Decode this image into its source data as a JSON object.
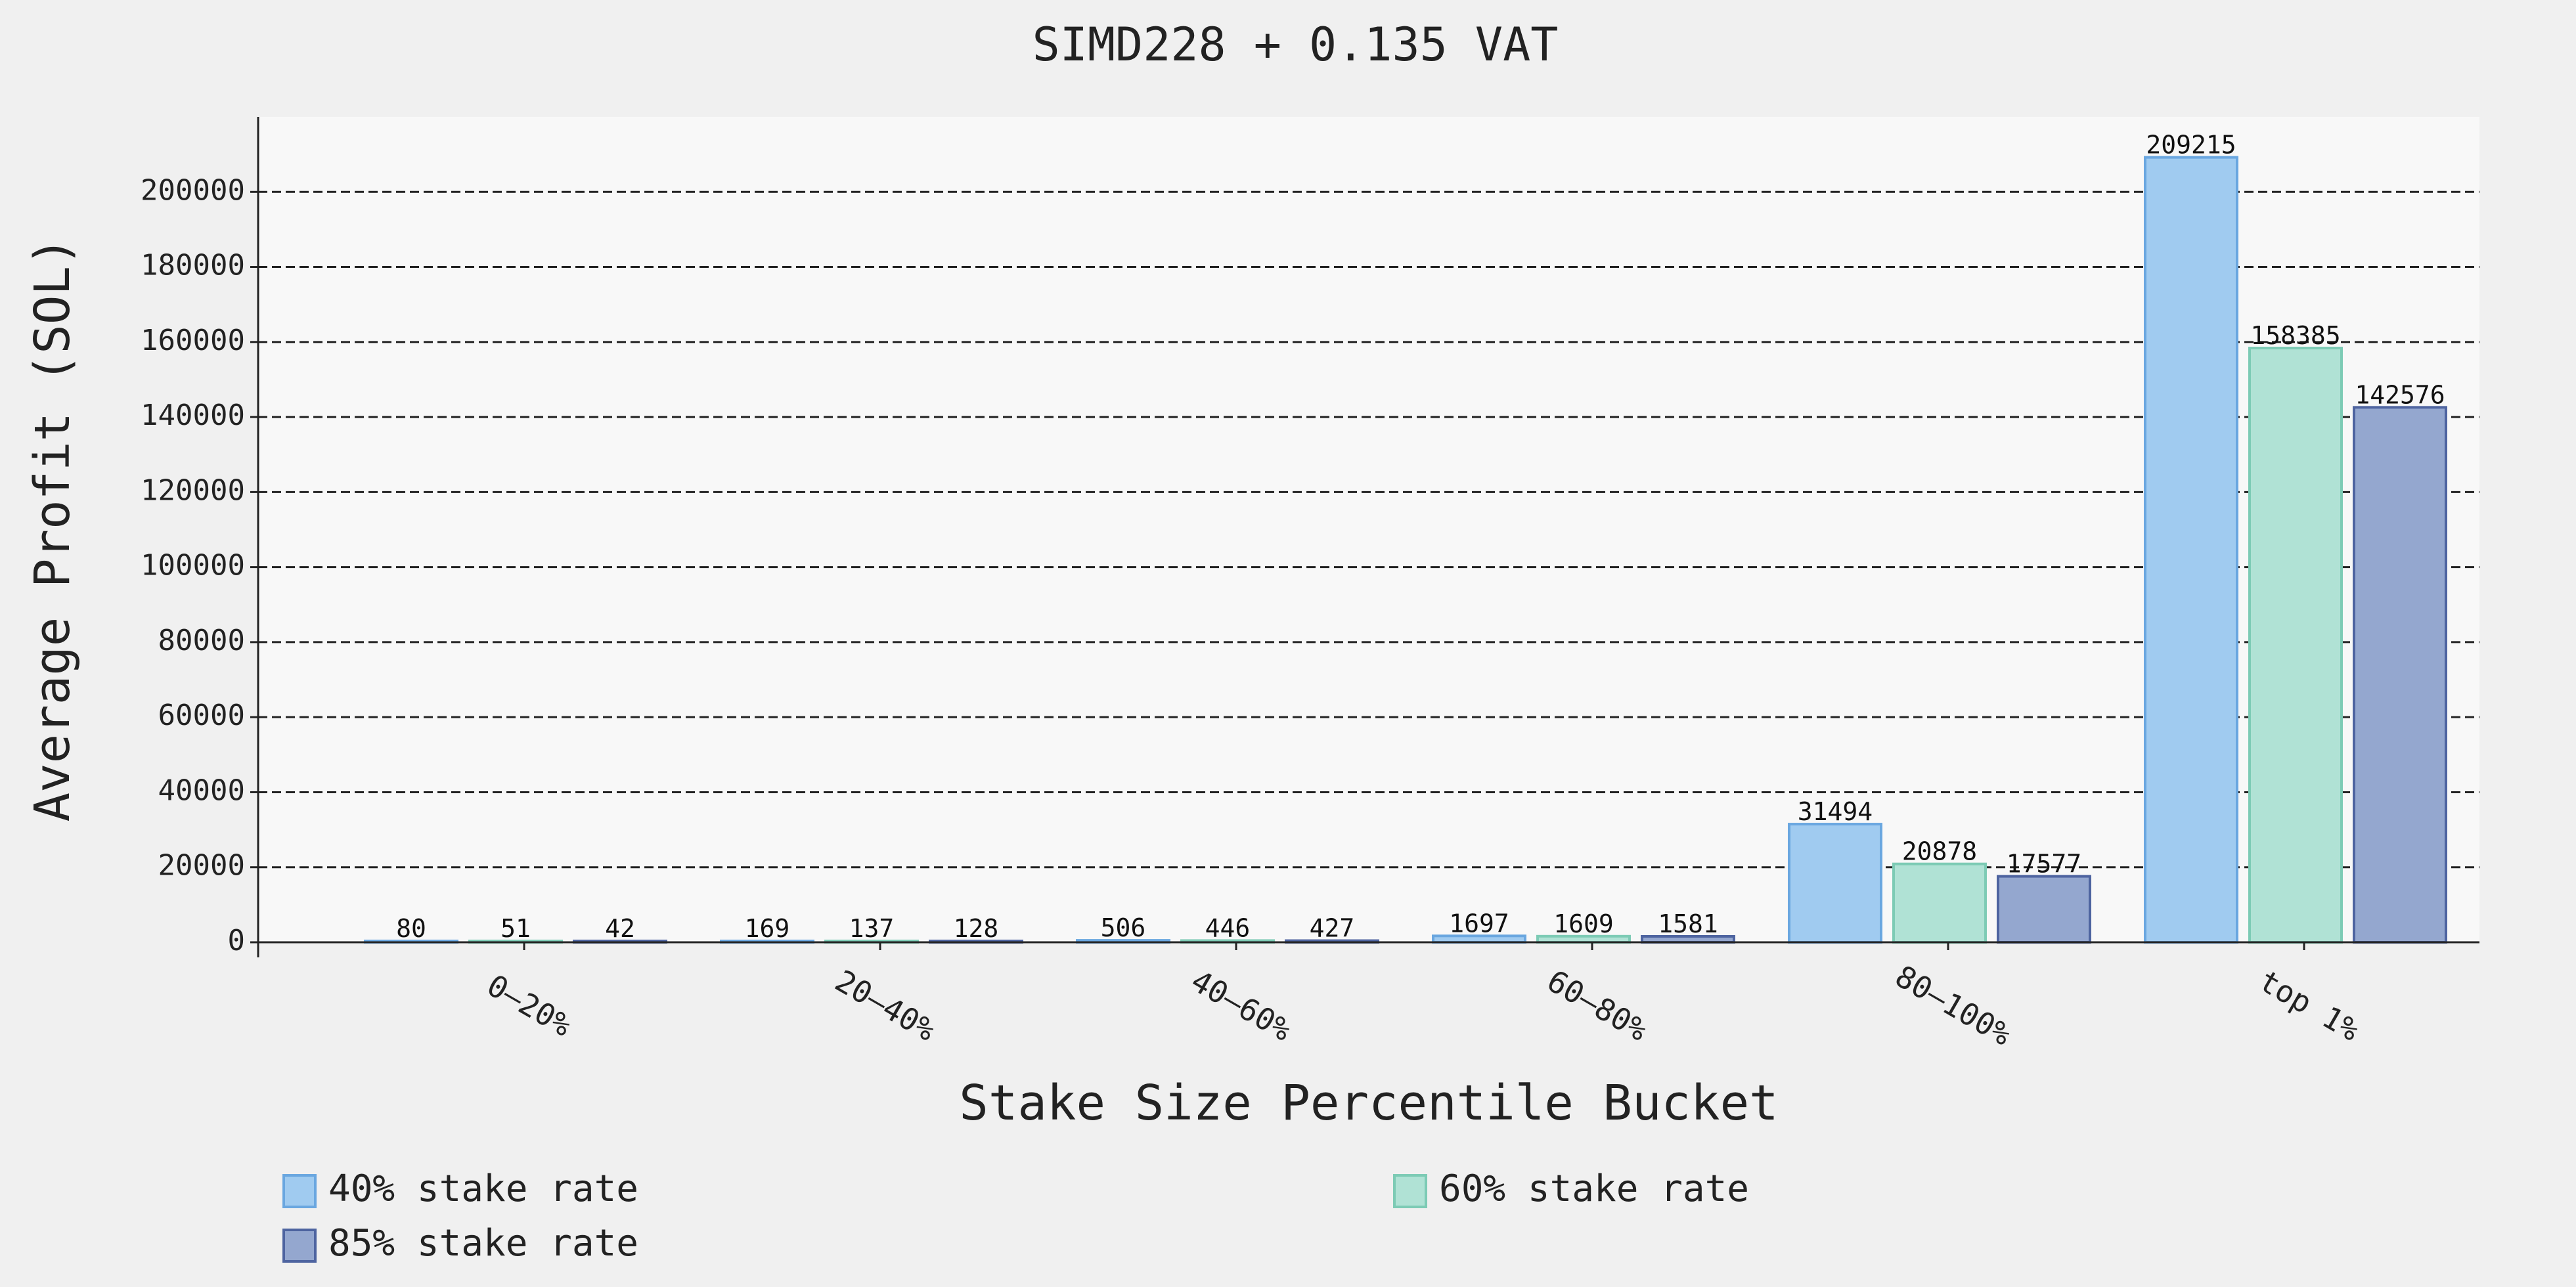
{
  "chart_data": {
    "type": "bar",
    "title": "SIMD228 + 0.135 VAT",
    "xlabel": "Stake Size Percentile Bucket",
    "ylabel": "Average Profit (SOL)",
    "categories": [
      "0–20%",
      "20–40%",
      "40–60%",
      "60–80%",
      "80–100%",
      "top 1%"
    ],
    "ylim": [
      0,
      220000
    ],
    "yticks": [
      0,
      20000,
      40000,
      60000,
      80000,
      100000,
      120000,
      140000,
      160000,
      180000,
      200000
    ],
    "grid": true,
    "legend_position": "bottom",
    "series": [
      {
        "name": "40% stake rate",
        "color": "#a0cbf0",
        "edge": "#6aa7e0",
        "values": [
          80,
          169,
          506,
          1697,
          31494,
          209215
        ]
      },
      {
        "name": "60% stake rate",
        "color": "#b0e2d5",
        "edge": "#7dcbb5",
        "values": [
          51,
          137,
          446,
          1609,
          20878,
          158385
        ]
      },
      {
        "name": "85% stake rate",
        "color": "#94a7cf",
        "edge": "#4e64a0",
        "values": [
          42,
          128,
          427,
          1581,
          17577,
          142576
        ]
      }
    ]
  }
}
